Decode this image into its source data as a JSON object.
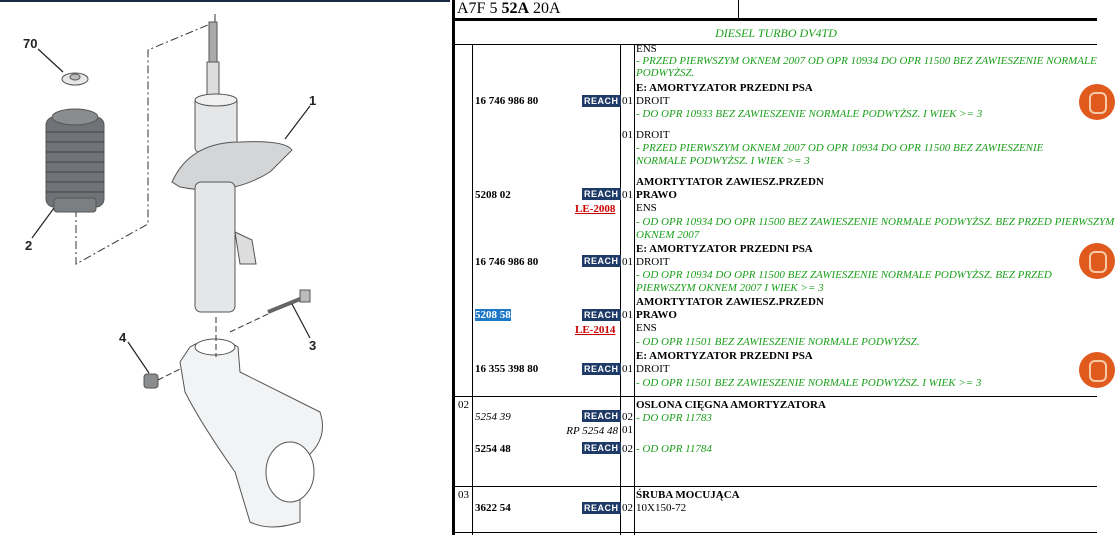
{
  "diagram": {
    "callouts": [
      "70",
      "1",
      "2",
      "3",
      "4"
    ]
  },
  "header": {
    "code_a": "A7F 5 ",
    "code_b": "52A",
    "code_c": " 20A",
    "engine": "DIESEL TURBO DV4TD"
  },
  "reach_label": "REACH",
  "accent": {
    "green": "#1aa01a",
    "reach_bg": "#1e3a66",
    "le_red": "#cc0000",
    "badge_orange": "#e05a1e"
  },
  "lines": [
    {
      "text": "ENS"
    },
    {
      "text": "- PRZED PIERWSZYM OKNEM 2007 OD OPR 10934 DO OPR 11500 BEZ ZAWIESZENIE NORMALE"
    },
    {
      "text": "PODWYŻSZ."
    },
    {
      "text": "E: AMORTYZATOR PRZEDNI PSA"
    },
    {
      "text": "DROIT"
    },
    {
      "text": "- DO OPR 10933 BEZ ZAWIESZENIE NORMALE PODWYŻSZ. I WIEK >= 3"
    },
    {
      "text": "DROIT"
    },
    {
      "text": "- PRZED PIERWSZYM OKNEM 2007 OD OPR 10934 DO OPR 11500 BEZ ZAWIESZENIE"
    },
    {
      "text": "NORMALE PODWYŻSZ. I WIEK >= 3"
    },
    {
      "text": "AMORTYTATOR ZAWIESZ.PRZEDN"
    },
    {
      "text": "PRAWO"
    },
    {
      "text": "ENS"
    },
    {
      "text": "- OD OPR 10934 DO OPR 11500 BEZ ZAWIESZENIE NORMALE PODWYŻSZ. BEZ PRZED PIERWSZYM"
    },
    {
      "text": "OKNEM 2007"
    },
    {
      "text": "E: AMORTYZATOR PRZEDNI PSA"
    },
    {
      "text": "DROIT"
    },
    {
      "text": "- OD OPR 10934 DO OPR 11500 BEZ ZAWIESZENIE NORMALE PODWYŻSZ. BEZ PRZED"
    },
    {
      "text": "PIERWSZYM OKNEM 2007 I WIEK >= 3"
    },
    {
      "text": "AMORTYTATOR ZAWIESZ.PRZEDN"
    },
    {
      "text": "PRAWO"
    },
    {
      "text": "ENS"
    },
    {
      "text": "- OD OPR 11501 BEZ ZAWIESZENIE NORMALE PODWYŻSZ."
    },
    {
      "text": "E: AMORTYZATOR PRZEDNI PSA"
    },
    {
      "text": "DROIT"
    },
    {
      "text": "- OD OPR 11501 BEZ ZAWIESZENIE NORMALE PODWYŻSZ. I WIEK >= 3"
    },
    {
      "text": "OSLONA CIĘGNA AMORTYZATORA"
    },
    {
      "text": "- DO OPR 11783"
    },
    {
      "text": "- OD OPR 11784"
    },
    {
      "text": "ŚRUBA MOCUJĄCA"
    },
    {
      "text": "10X150-72"
    }
  ],
  "parts": [
    {
      "ref": "16 746 986 80",
      "qty": "01"
    },
    {
      "qty": "01"
    },
    {
      "ref": "5208 02",
      "qty": "01",
      "le": "LE-2008"
    },
    {
      "ref": "16 746 986 80",
      "qty": "01"
    },
    {
      "ref": "5208 58",
      "qty": "01",
      "le": "LE-2014"
    },
    {
      "ref": "16 355 398 80",
      "qty": "01"
    },
    {
      "item": "02",
      "ref": "5254 39",
      "qty": "02"
    },
    {
      "ref": "RP 5254 48",
      "qty": "01"
    },
    {
      "ref": "5254 48",
      "qty": "02"
    },
    {
      "item": "03",
      "ref": "3622 54",
      "qty": "02"
    }
  ]
}
